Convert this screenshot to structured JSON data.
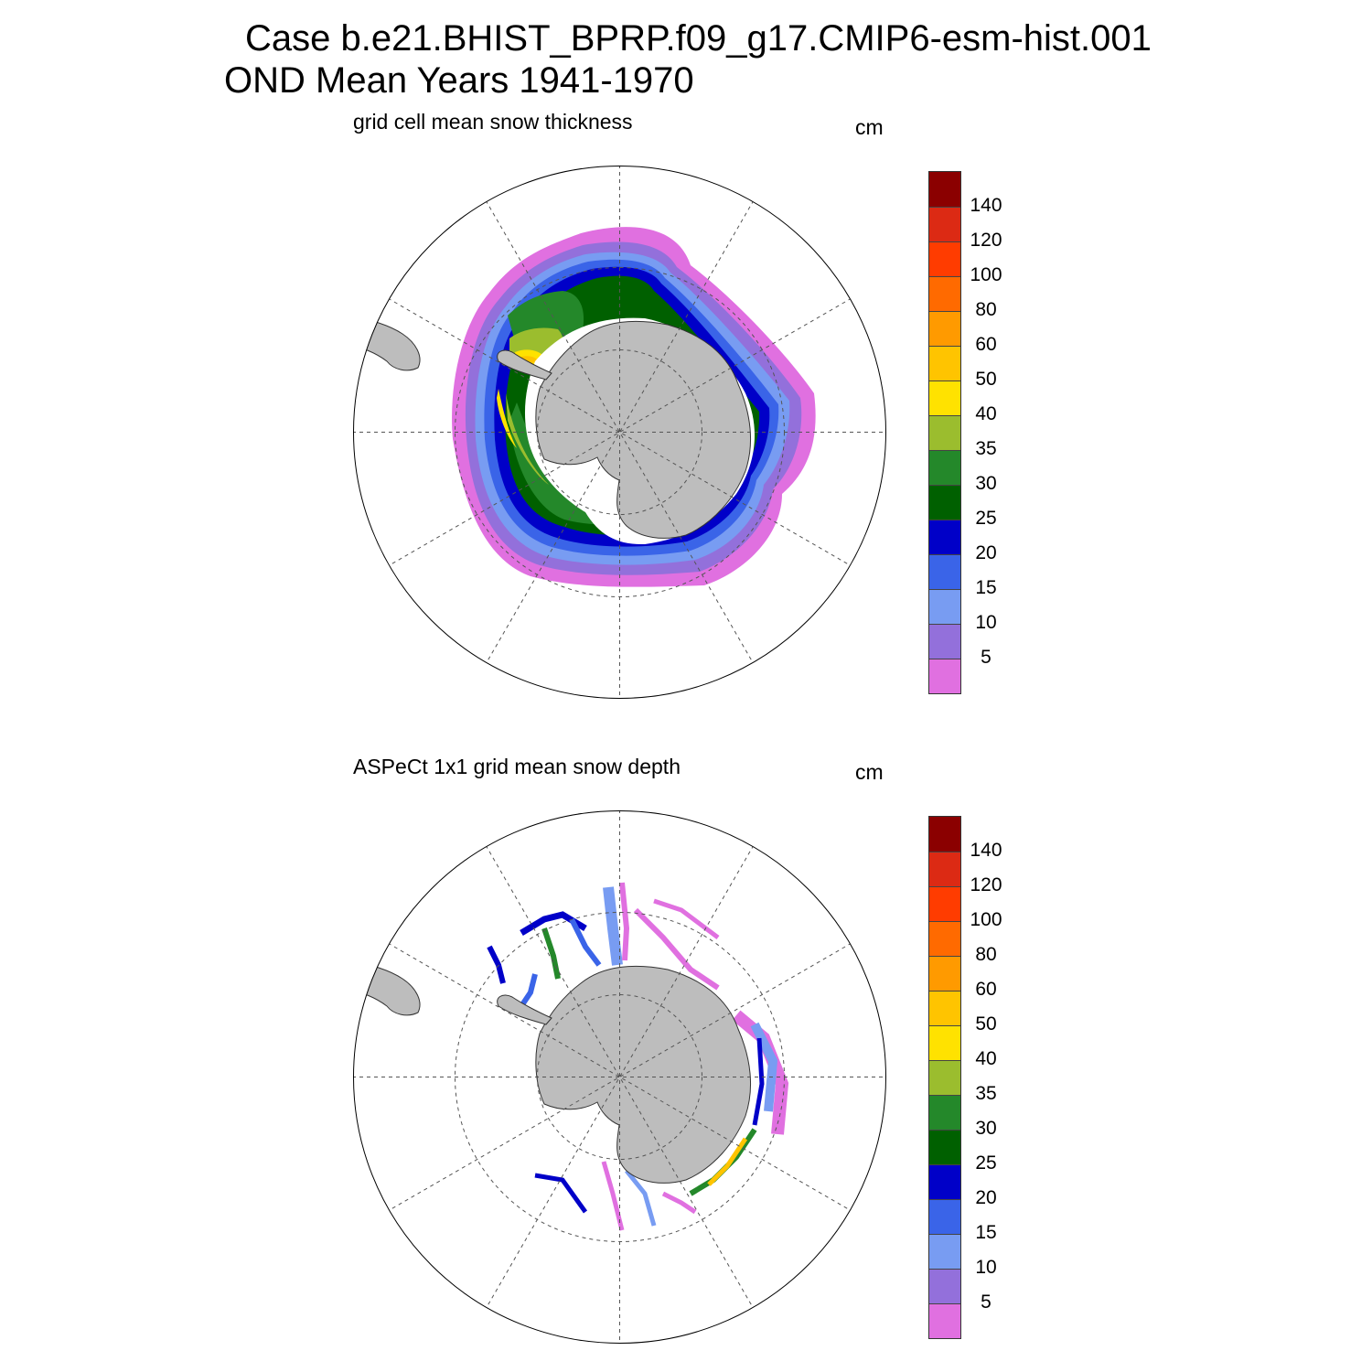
{
  "title": {
    "line1": "Case b.e21.BHIST_BPRP.f09_g17.CMIP6-esm-hist.001",
    "line2": "OND Mean   Years 1941-1970"
  },
  "panels": [
    {
      "label": "grid cell mean snow thickness",
      "unit": "cm"
    },
    {
      "label": "ASPeCt 1x1 grid mean snow depth",
      "unit": "cm"
    }
  ],
  "colorbar": {
    "colors": [
      "#8b0000",
      "#dc2a14",
      "#ff3c00",
      "#ff6a00",
      "#ff9a00",
      "#ffc400",
      "#ffe200",
      "#9bbd2e",
      "#24882a",
      "#006000",
      "#0000c8",
      "#3a64e8",
      "#789cf2",
      "#9370db",
      "#e070e0"
    ],
    "tick_labels": [
      "140",
      "120",
      "100",
      "80",
      "60",
      "50",
      "40",
      "35",
      "30",
      "25",
      "20",
      "15",
      "10",
      "5"
    ]
  },
  "map_colors": {
    "land": "#bdbdbd",
    "grid": "#555555"
  }
}
